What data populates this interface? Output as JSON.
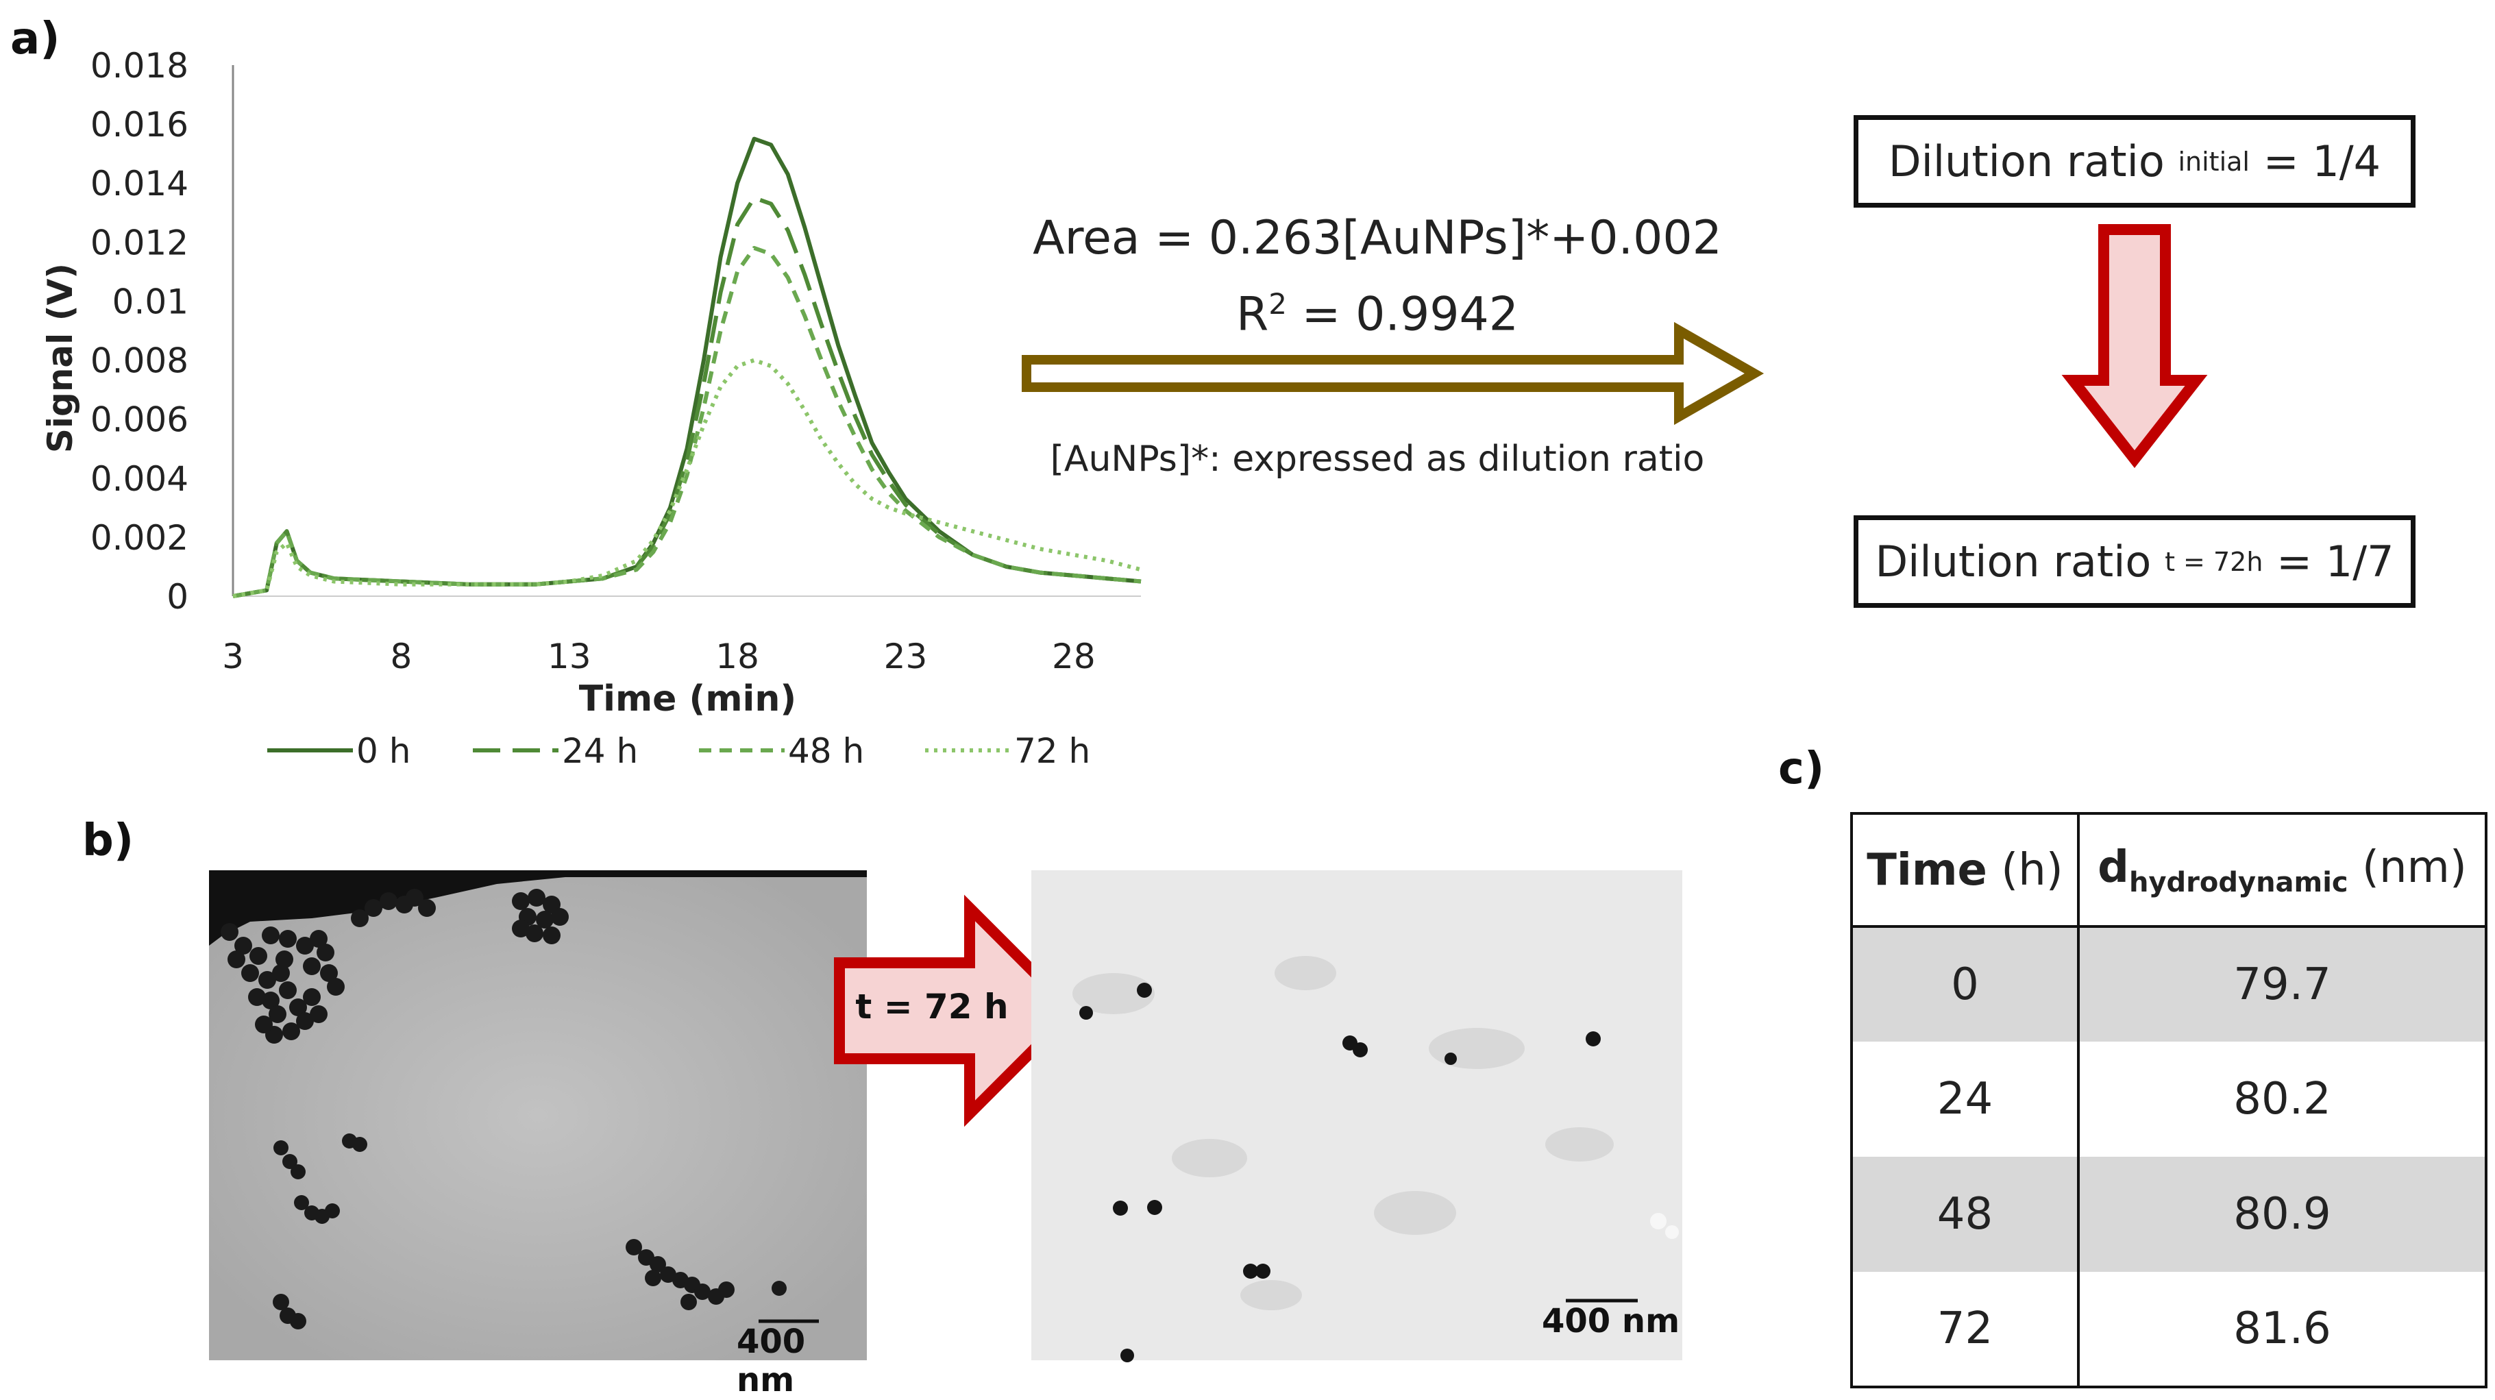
{
  "panels": {
    "a": "a)",
    "b": "b)",
    "c": "c)"
  },
  "chart_data": {
    "type": "line",
    "xlabel": "Time (min)",
    "ylabel": "Signal (V)",
    "xlim": [
      3,
      30
    ],
    "ylim": [
      0,
      0.018
    ],
    "x_ticks": [
      3,
      8,
      13,
      18,
      23,
      28
    ],
    "y_ticks": [
      "0",
      "0.002",
      "0.004",
      "0.006",
      "0.008",
      "0.01",
      "0.012",
      "0.014",
      "0.016",
      "0.018"
    ],
    "series": [
      {
        "name": "0 h",
        "color": "#3c6e2a",
        "dash": "",
        "x": [
          3,
          4,
          4.3,
          4.6,
          4.9,
          5.3,
          6,
          8,
          10,
          12,
          13,
          14,
          15,
          15.5,
          16,
          16.5,
          17,
          17.5,
          18,
          18.5,
          19,
          19.5,
          20,
          20.5,
          21,
          21.5,
          22,
          22.5,
          23,
          24,
          25,
          26,
          27,
          28,
          29,
          30
        ],
        "y": [
          0,
          0.0002,
          0.0018,
          0.0022,
          0.0012,
          0.0008,
          0.0006,
          0.0005,
          0.0004,
          0.0004,
          0.0005,
          0.0006,
          0.001,
          0.0018,
          0.003,
          0.005,
          0.008,
          0.0115,
          0.014,
          0.0155,
          0.0153,
          0.0143,
          0.0125,
          0.0105,
          0.0085,
          0.0068,
          0.0052,
          0.0042,
          0.0033,
          0.0022,
          0.0014,
          0.001,
          0.0008,
          0.0007,
          0.0006,
          0.0005
        ]
      },
      {
        "name": "24 h",
        "color": "#4f8a36",
        "dash": "40,18",
        "x": [
          3,
          4,
          4.3,
          4.6,
          4.9,
          5.3,
          6,
          8,
          10,
          12,
          13,
          14,
          15,
          15.5,
          16,
          16.5,
          17,
          17.5,
          18,
          18.5,
          19,
          19.5,
          20,
          20.5,
          21,
          21.5,
          22,
          22.5,
          23,
          24,
          25,
          26,
          27,
          28,
          29,
          30
        ],
        "y": [
          0,
          0.0002,
          0.0018,
          0.0022,
          0.0012,
          0.0008,
          0.0006,
          0.0005,
          0.0004,
          0.0004,
          0.0005,
          0.0006,
          0.001,
          0.0017,
          0.0028,
          0.0046,
          0.0072,
          0.0103,
          0.0126,
          0.0135,
          0.0133,
          0.0124,
          0.0109,
          0.0092,
          0.0076,
          0.0061,
          0.0048,
          0.0039,
          0.0031,
          0.0021,
          0.0014,
          0.001,
          0.0008,
          0.0007,
          0.0006,
          0.0005
        ]
      },
      {
        "name": "48 h",
        "color": "#6aa84f",
        "dash": "18,12",
        "x": [
          3,
          4,
          4.3,
          4.6,
          4.9,
          5.3,
          6,
          8,
          10,
          12,
          13,
          14,
          15,
          15.5,
          16,
          16.5,
          17,
          17.5,
          18,
          18.5,
          19,
          19.5,
          20,
          20.5,
          21,
          21.5,
          22,
          22.5,
          23,
          24,
          25,
          26,
          27,
          28,
          29,
          30
        ],
        "y": [
          0,
          0.0002,
          0.0018,
          0.0022,
          0.0012,
          0.0008,
          0.0006,
          0.0005,
          0.0004,
          0.0004,
          0.0005,
          0.0006,
          0.0009,
          0.0015,
          0.0025,
          0.0041,
          0.0064,
          0.009,
          0.011,
          0.0118,
          0.0116,
          0.0108,
          0.0095,
          0.008,
          0.0066,
          0.0054,
          0.0043,
          0.0035,
          0.0029,
          0.002,
          0.0014,
          0.001,
          0.0008,
          0.0007,
          0.0006,
          0.0005
        ]
      },
      {
        "name": "72 h",
        "color": "#8cc56a",
        "dash": "5,8",
        "x": [
          3,
          4,
          4.3,
          4.6,
          4.9,
          5.3,
          6,
          8,
          10,
          12,
          13,
          14,
          15,
          15.5,
          16,
          16.5,
          17,
          17.5,
          18,
          18.5,
          19,
          19.5,
          20,
          20.5,
          21,
          21.5,
          22,
          22.5,
          23,
          24,
          25,
          26,
          27,
          28,
          29,
          30
        ],
        "y": [
          0,
          0.0002,
          0.0015,
          0.0018,
          0.001,
          0.0007,
          0.0005,
          0.0004,
          0.0004,
          0.0004,
          0.0005,
          0.0007,
          0.0012,
          0.0019,
          0.0029,
          0.0043,
          0.0058,
          0.0071,
          0.0078,
          0.008,
          0.0078,
          0.0072,
          0.0063,
          0.0053,
          0.0045,
          0.0038,
          0.0033,
          0.003,
          0.0028,
          0.0025,
          0.0022,
          0.0019,
          0.0016,
          0.0014,
          0.0012,
          0.0009
        ]
      }
    ],
    "legend": "bottom"
  },
  "equation": {
    "line1": "Area = 0.263[AuNPs]*+0.002",
    "r2_prefix": "R",
    "r2_sup": "2",
    "r2_value": " = 0.9942",
    "note": "[AuNPs]*: expressed as dilution ratio"
  },
  "dilution": {
    "initial_prefix": "Dilution ratio ",
    "initial_sub": "initial",
    "initial_value": " = 1/4",
    "final_prefix": "Dilution ratio ",
    "final_sub": "t = 72h",
    "final_value": " = 1/7"
  },
  "tem": {
    "arrow_label": "t = 72 h",
    "scale_left": "400 nm",
    "scale_right": "400 nm"
  },
  "table": {
    "header_time_bold": "Time",
    "header_time_unit": " (h)",
    "header_d_bold": "d",
    "header_d_sub": "hydrodynamic",
    "header_d_unit": " (nm)",
    "rows": [
      {
        "time": "0",
        "d": "79.7"
      },
      {
        "time": "24",
        "d": "80.2"
      },
      {
        "time": "48",
        "d": "80.9"
      },
      {
        "time": "72",
        "d": "81.6"
      }
    ]
  },
  "colors": {
    "olive_arrow": "#7a5c00",
    "red_arrow": "#c00000",
    "red_fill": "#f6d3d3",
    "row_shade": "#d8d8d8"
  }
}
